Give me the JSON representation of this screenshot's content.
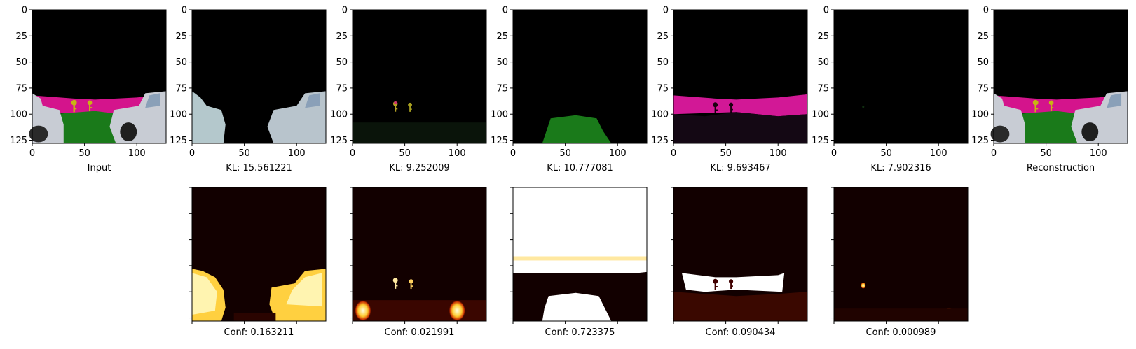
{
  "chart_data": {
    "type": "image_grid",
    "top_row": [
      {
        "id": "input",
        "caption": "Input",
        "kind": "input"
      },
      {
        "id": "slot1",
        "caption": "KL: 15.561221",
        "kind": "slot-cars"
      },
      {
        "id": "slot2",
        "caption": "KL: 9.252009",
        "kind": "slot-keys"
      },
      {
        "id": "slot3",
        "caption": "KL: 10.777081",
        "kind": "slot-floor"
      },
      {
        "id": "slot4",
        "caption": "KL: 9.693467",
        "kind": "slot-wall"
      },
      {
        "id": "slot5",
        "caption": "KL: 7.902316",
        "kind": "slot-empty"
      },
      {
        "id": "recon",
        "caption": "Reconstruction",
        "kind": "input"
      }
    ],
    "bottom_row": [
      {
        "id": "conf1",
        "caption": "Conf: 0.163211",
        "kind": "mask-cars"
      },
      {
        "id": "conf2",
        "caption": "Conf: 0.021991",
        "kind": "mask-keys"
      },
      {
        "id": "conf3",
        "caption": "Conf: 0.723375",
        "kind": "mask-floor"
      },
      {
        "id": "conf4",
        "caption": "Conf: 0.090434",
        "kind": "mask-wall"
      },
      {
        "id": "conf5",
        "caption": "Conf: 0.000989",
        "kind": "mask-empty"
      }
    ],
    "x_ticks": [
      "0",
      "50",
      "100"
    ],
    "y_ticks": [
      "0",
      "25",
      "50",
      "75",
      "100",
      "125"
    ],
    "xlim": [
      0,
      128
    ],
    "ylim": [
      128,
      0
    ],
    "colors": {
      "sky": "#000000",
      "wall": "#d4148c",
      "floor": "#1a7a1a",
      "car": "#c8ccd4",
      "key": "#c8b414",
      "heat_dark": "#120000",
      "heat_hot": "#ffffff"
    }
  }
}
